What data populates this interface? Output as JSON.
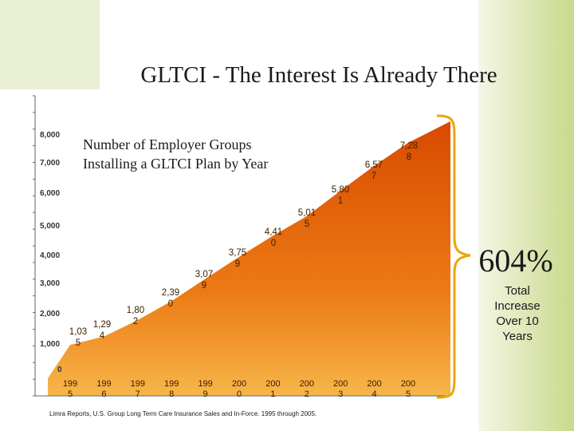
{
  "slide": {
    "title": "GLTCI - The Interest Is Already There",
    "source": "Limra Reports, U.S. Group Long Term Care Insurance Sales and In-Force. 1995 through 2005."
  },
  "callout": {
    "percent": "604%",
    "caption_lines": [
      "Total",
      "Increase",
      "Over 10",
      "Years"
    ]
  },
  "colors": {
    "fill_dark": "#d84a00",
    "fill_light": "#f7b64a",
    "bracket": "#e8a800",
    "accent_green": "#c9d98d"
  },
  "chart_data": {
    "type": "area",
    "subtitle": [
      "Number of Employer Groups",
      "Installing a GLTCI Plan by Year"
    ],
    "y_ticks": [
      "0",
      "1,000",
      "2,000",
      "3,000",
      "4,000",
      "5,000",
      "6,000",
      "7,000",
      "8,000"
    ],
    "ylim": [
      0,
      8000
    ],
    "grid": false,
    "x": [
      "1995",
      "1996",
      "1997",
      "1998",
      "1999",
      "2000",
      "2001",
      "2002",
      "2003",
      "2004",
      "2005"
    ],
    "x_tick_labels": [
      [
        "199",
        "5"
      ],
      [
        "199",
        "6"
      ],
      [
        "199",
        "7"
      ],
      [
        "199",
        "8"
      ],
      [
        "199",
        "9"
      ],
      [
        "200",
        "0"
      ],
      [
        "200",
        "1"
      ],
      [
        "200",
        "2"
      ],
      [
        "200",
        "3"
      ],
      [
        "200",
        "4"
      ],
      [
        "200",
        "5"
      ]
    ],
    "values": [
      1035,
      1294,
      1802,
      2390,
      3079,
      3759,
      4410,
      5015,
      5801,
      6577,
      7288
    ],
    "data_labels": [
      [
        "1,03",
        "5"
      ],
      [
        "1,29",
        "4"
      ],
      [
        "1,80",
        "2"
      ],
      [
        "2,39",
        "0"
      ],
      [
        "3,07",
        "9"
      ],
      [
        "3,75",
        "9"
      ],
      [
        "4,41",
        "0"
      ],
      [
        "5,01",
        "5"
      ],
      [
        "5,80",
        "1"
      ],
      [
        "6,57",
        "7"
      ],
      [
        "7,28",
        "8"
      ]
    ]
  }
}
